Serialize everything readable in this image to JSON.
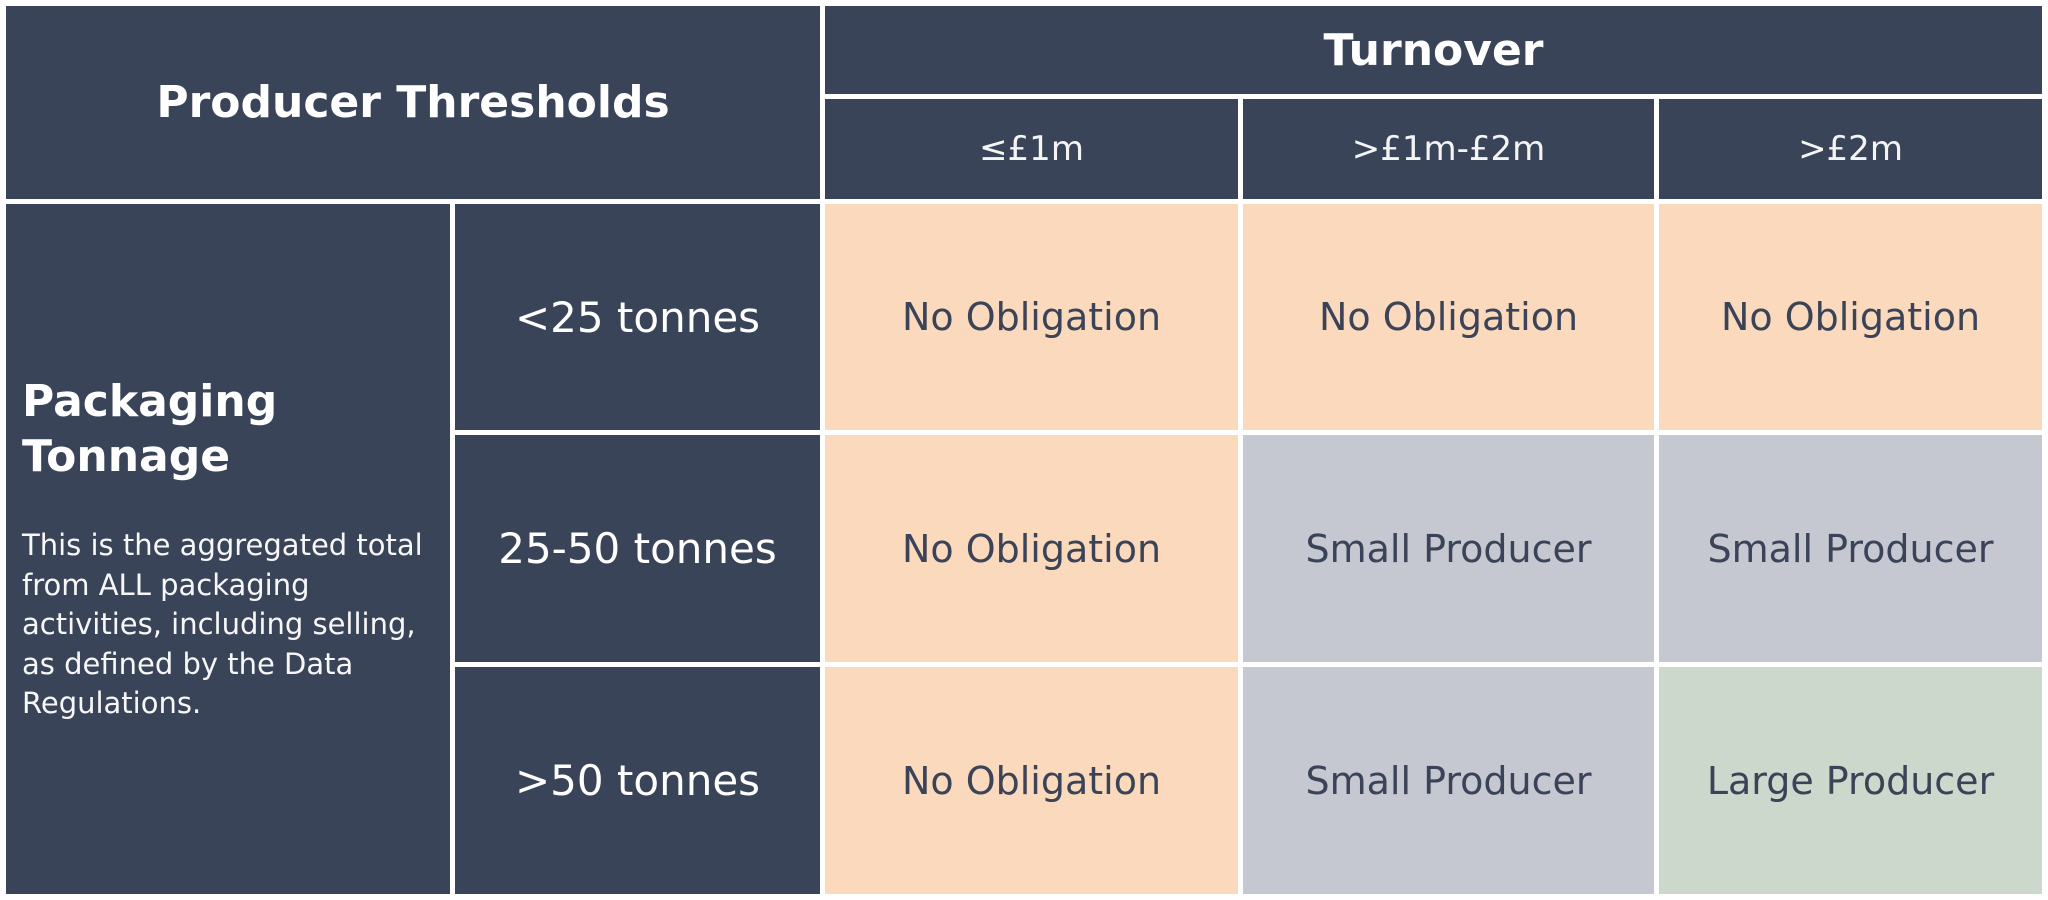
{
  "colors": {
    "header_bg": "#3A4459",
    "header_text": "#FFFFFF",
    "cell_text": "#3A4358",
    "grid": "#FFFFFF",
    "peach": "#FAD9BC",
    "gray": "#C5C8D1",
    "green": "#CDD8CC"
  },
  "table": {
    "corner_header": "Producer Thresholds",
    "turnover": {
      "header": "Turnover",
      "columns": [
        "≤£1m",
        ">£1m-£2m",
        ">£2m"
      ]
    },
    "tonnage": {
      "title": "Packaging Tonnage",
      "description": "This is the aggregated total from ALL packaging activities, including selling, as defined by the Data Regulations."
    },
    "rows": [
      {
        "label": "<25 tonnes",
        "cells": [
          {
            "text": "No Obligation",
            "color": "peach"
          },
          {
            "text": "No Obligation",
            "color": "peach"
          },
          {
            "text": "No Obligation",
            "color": "peach"
          }
        ]
      },
      {
        "label": "25-50 tonnes",
        "cells": [
          {
            "text": "No Obligation",
            "color": "peach"
          },
          {
            "text": "Small Producer",
            "color": "gray"
          },
          {
            "text": "Small Producer",
            "color": "gray"
          }
        ]
      },
      {
        "label": ">50 tonnes",
        "cells": [
          {
            "text": "No Obligation",
            "color": "peach"
          },
          {
            "text": "Small Producer",
            "color": "gray"
          },
          {
            "text": "Large Producer",
            "color": "green"
          }
        ]
      }
    ]
  }
}
